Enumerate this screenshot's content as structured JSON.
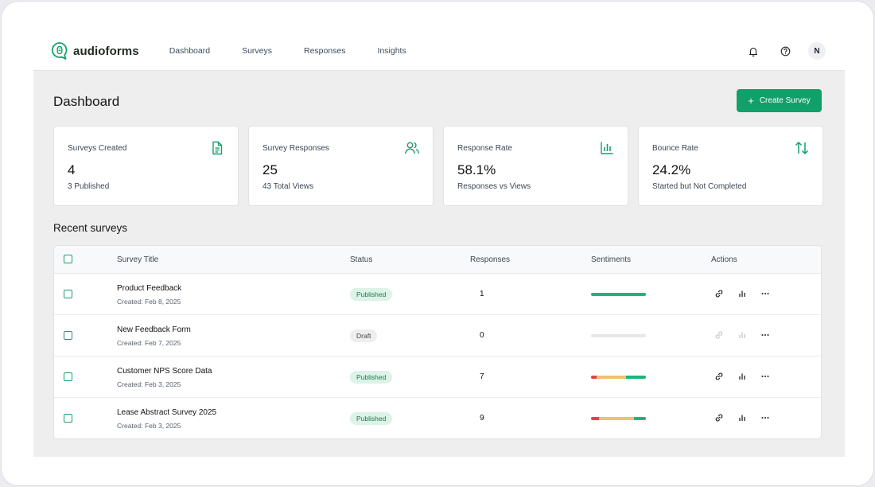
{
  "app": {
    "name": "audioforms"
  },
  "nav": {
    "items": [
      "Dashboard",
      "Surveys",
      "Responses",
      "Insights"
    ]
  },
  "header": {
    "avatar_initial": "N",
    "icons": [
      "bell-icon",
      "help-icon"
    ]
  },
  "page": {
    "title": "Dashboard",
    "create_button": "Create Survey"
  },
  "stats": [
    {
      "label": "Surveys Created",
      "value": "4",
      "sub": "3 Published",
      "icon": "document-icon"
    },
    {
      "label": "Survey Responses",
      "value": "25",
      "sub": "43 Total Views",
      "icon": "users-icon"
    },
    {
      "label": "Response Rate",
      "value": "58.1%",
      "sub": "Responses vs Views",
      "icon": "bar-chart-icon"
    },
    {
      "label": "Bounce Rate",
      "value": "24.2%",
      "sub": "Started but Not Completed",
      "icon": "arrows-up-down-icon"
    }
  ],
  "recent": {
    "title": "Recent surveys",
    "columns": [
      "Survey Title",
      "Status",
      "Responses",
      "Sentiments",
      "Actions"
    ],
    "rows": [
      {
        "title": "Product Feedback",
        "created": "Created: Feb 8, 2025",
        "status": "Published",
        "responses": "1",
        "sentiment": {
          "negative": 0,
          "neutral": 0,
          "positive": 1.0
        }
      },
      {
        "title": "New Feedback Form",
        "created": "Created: Feb 7, 2025",
        "status": "Draft",
        "responses": "0",
        "sentiment": {
          "negative": 0,
          "neutral": 0,
          "positive": 0
        }
      },
      {
        "title": "Customer NPS Score Data",
        "created": "Created: Feb 3, 2025",
        "status": "Published",
        "responses": "7",
        "sentiment": {
          "negative": 0.1,
          "neutral": 0.54,
          "positive": 0.36
        }
      },
      {
        "title": "Lease Abstract Survey 2025",
        "created": "Created: Feb 3, 2025",
        "status": "Published",
        "responses": "9",
        "sentiment": {
          "negative": 0.15,
          "neutral": 0.63,
          "positive": 0.22
        }
      }
    ]
  },
  "colors": {
    "accent": "#12a06a",
    "negative": "#e0463c",
    "neutral": "#f2c06e",
    "positive": "#1fb37a",
    "empty": "#e5e7ea"
  }
}
